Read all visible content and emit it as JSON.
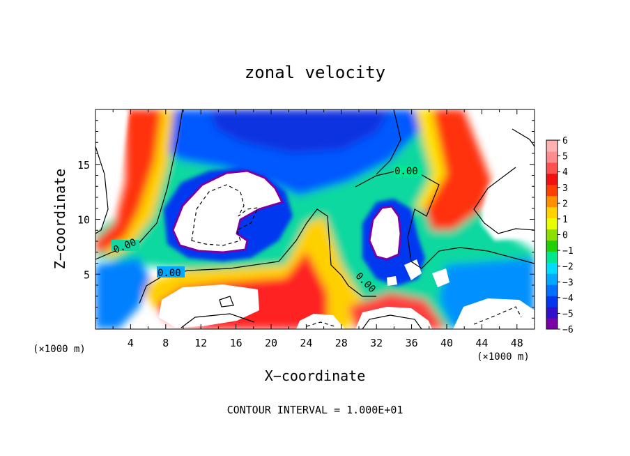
{
  "chart_data": {
    "type": "heatmap",
    "title": "zonal velocity",
    "xlabel": "X−coordinate",
    "ylabel": "Z−coordinate",
    "x_unit_left": "(×1000 m)",
    "x_unit_right": "(×1000 m)",
    "xlim": [
      0,
      50
    ],
    "ylim": [
      0,
      20
    ],
    "xticks": [
      4,
      8,
      12,
      16,
      20,
      24,
      28,
      32,
      36,
      40,
      44,
      48
    ],
    "xtick_labels": [
      "4",
      "8",
      "12",
      "16",
      "20",
      "24",
      "28",
      "32",
      "36",
      "40",
      "44",
      "48"
    ],
    "yticks": [
      5,
      10,
      15
    ],
    "ytick_labels": [
      "5",
      "10",
      "15"
    ],
    "colorbar": {
      "min": -6,
      "max": 6,
      "tick_values": [
        6,
        5,
        4,
        3,
        2,
        1,
        0,
        -1,
        -2,
        -3,
        -4,
        -5,
        -6
      ],
      "tick_labels": [
        "6",
        "5",
        "4",
        "3",
        "2",
        "1",
        "0",
        "−1",
        "−2",
        "−3",
        "−4",
        "−5",
        "−6"
      ],
      "colors": [
        "#7a00a8",
        "#3010c8",
        "#0038f0",
        "#0070ff",
        "#00a8ff",
        "#00dcff",
        "#00e890",
        "#20d000",
        "#8ce000",
        "#e8ff00",
        "#ffd200",
        "#ff9000",
        "#ff4000",
        "#f01010",
        "#ff5050",
        "#ff8c8c",
        "#ffb0b0"
      ],
      "white_beyond_range": true
    },
    "field_features": [
      {
        "kind": "strong westward jet",
        "sign": "negative",
        "x": [
          18,
          34
        ],
        "z": [
          16,
          20
        ],
        "peak": -5
      },
      {
        "kind": "eastward column",
        "sign": "positive",
        "x": [
          3,
          8
        ],
        "z": [
          6,
          20
        ],
        "peak": 6
      },
      {
        "kind": "eastward column",
        "sign": "positive",
        "x": [
          38,
          43
        ],
        "z": [
          8,
          20
        ],
        "peak": 6
      },
      {
        "kind": "eastward tongue",
        "sign": "positive",
        "x": [
          20,
          30
        ],
        "z": [
          0,
          9
        ],
        "peak": 6
      },
      {
        "kind": "eastward lower layer",
        "sign": "positive",
        "x": [
          6,
          24
        ],
        "z": [
          1,
          5
        ],
        "peak": 6
      },
      {
        "kind": "westward vortex",
        "sign": "negative",
        "x": [
          8,
          20
        ],
        "z": [
          7,
          14
        ],
        "peak": -6
      },
      {
        "kind": "westward vortex",
        "sign": "negative",
        "x": [
          30,
          36
        ],
        "z": [
          5,
          11
        ],
        "peak": -6
      }
    ],
    "contour_labels": [
      "0.00",
      "0.00",
      "0.00",
      "0.00"
    ],
    "annotation": "CONTOUR INTERVAL = 1.000E+01"
  }
}
